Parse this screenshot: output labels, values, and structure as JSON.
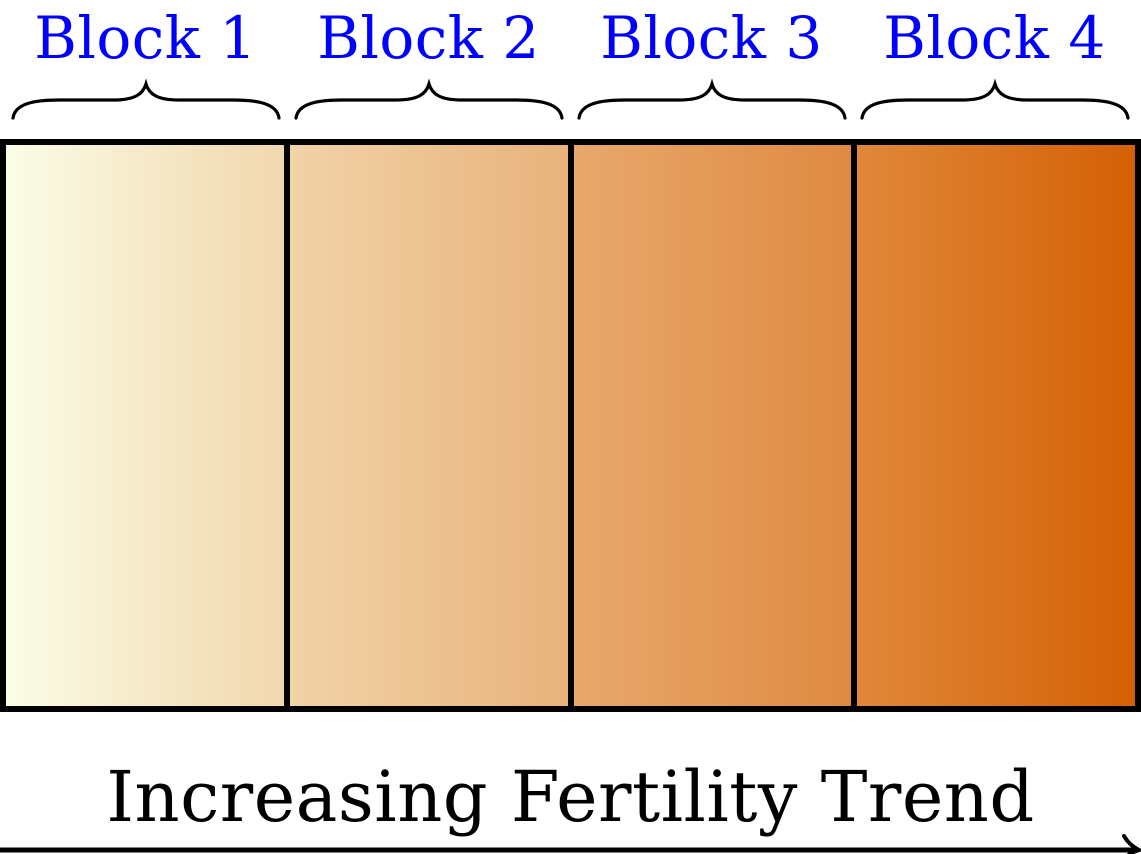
{
  "colors": {
    "label": "#0000ff",
    "border": "#000000",
    "gradient_start": "#fbfde6",
    "gradient_end": "#d56004"
  },
  "blocks": [
    {
      "label": "Block 1",
      "from": "#fbfde6",
      "to": "#f1d7ad"
    },
    {
      "label": "Block 2",
      "from": "#f1d3a8",
      "to": "#e8b27b"
    },
    {
      "label": "Block 3",
      "from": "#e8a86b",
      "to": "#df8a42"
    },
    {
      "label": "Block 4",
      "from": "#e0883a",
      "to": "#d56004"
    }
  ],
  "trend": {
    "label": "Increasing Fertility Trend",
    "icon": "arrow-right-icon"
  }
}
